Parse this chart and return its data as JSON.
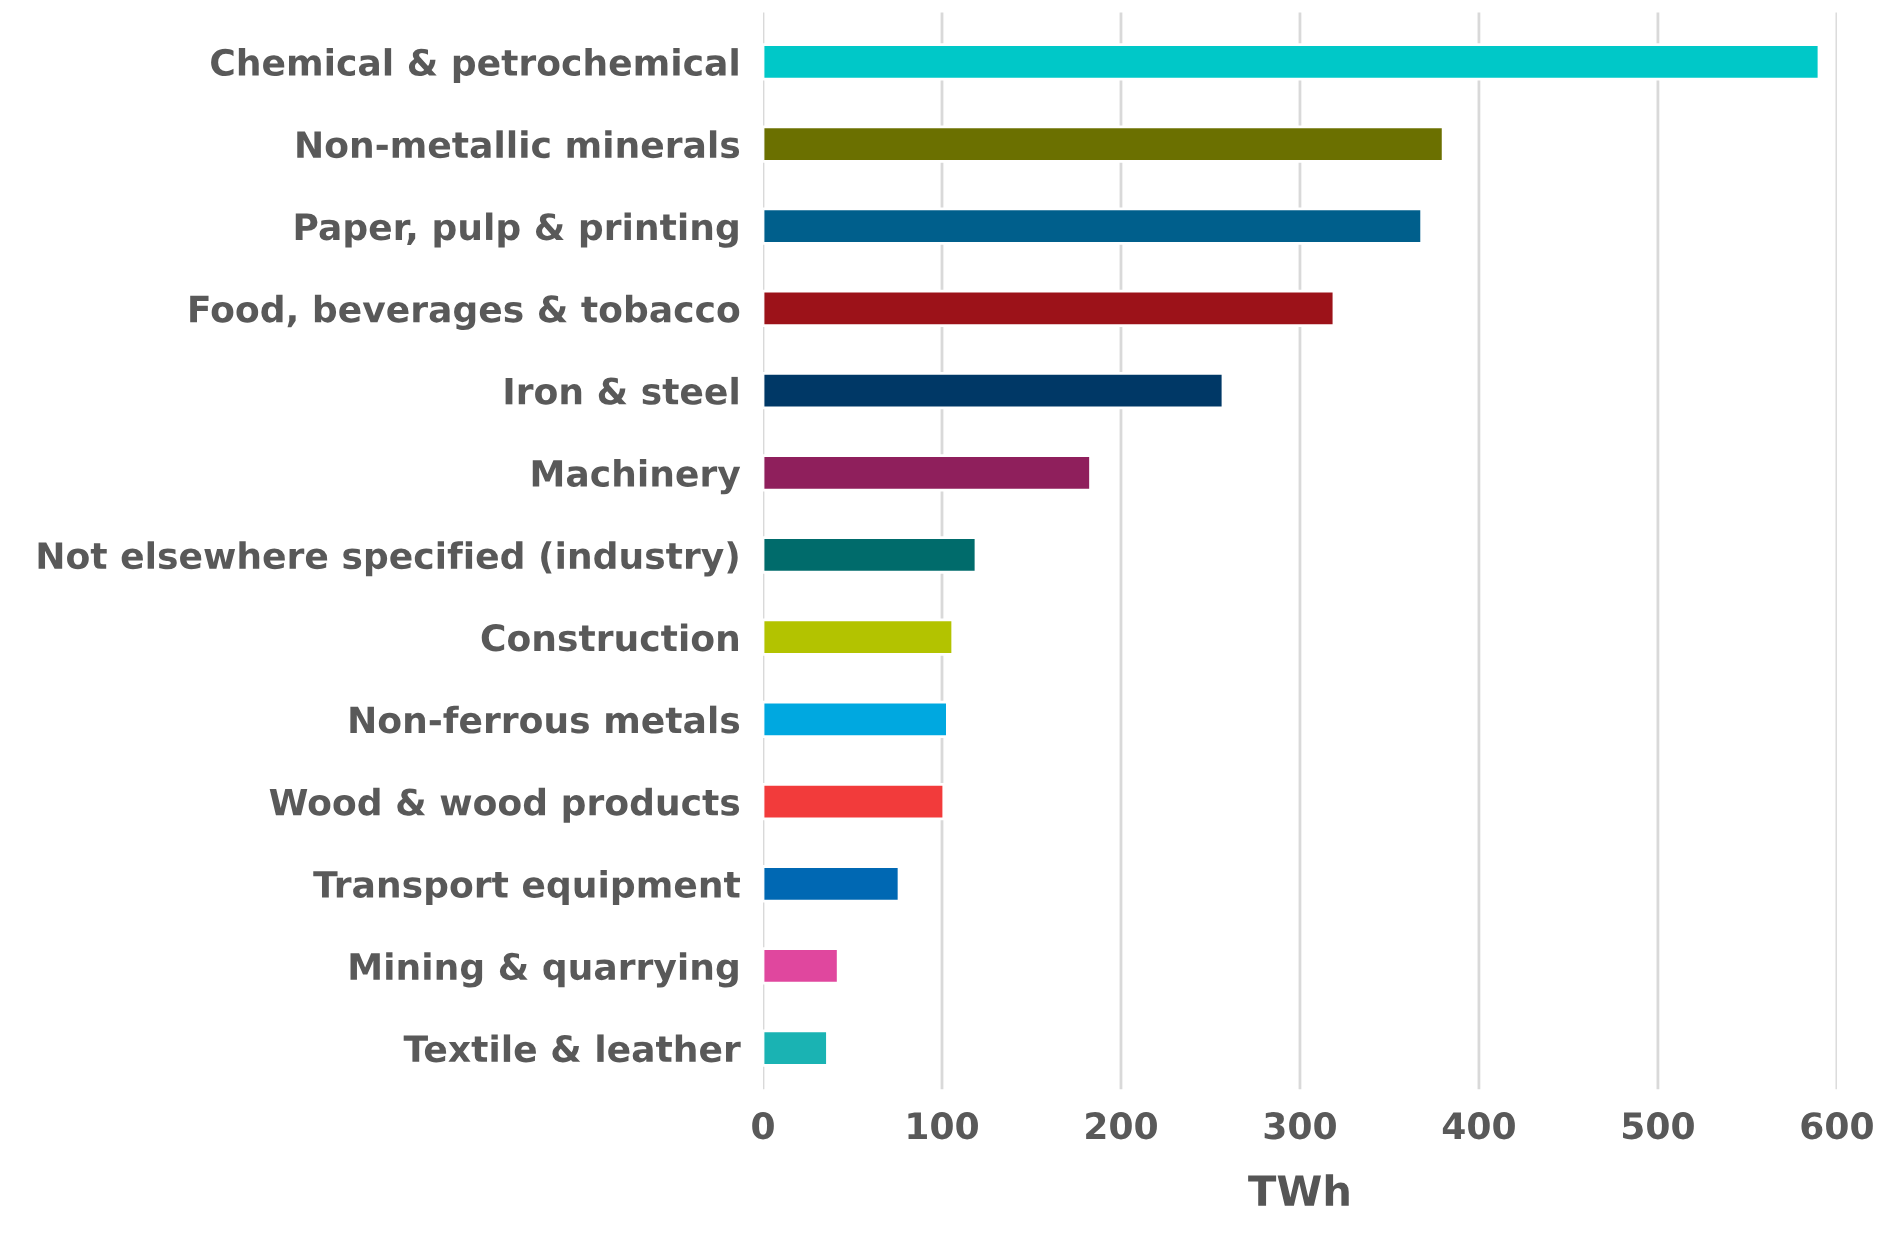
{
  "chart_data": {
    "type": "bar",
    "orientation": "horizontal",
    "xlabel": "TWh",
    "categories": [
      "Chemical & petrochemical",
      "Non-metallic minerals",
      "Paper, pulp & printing",
      "Food, beverages & tobacco",
      "Iron & steel",
      "Machinery",
      "Not elsewhere specified (industry)",
      "Construction",
      "Non-ferrous metals",
      "Wood & wood products",
      "Transport equipment",
      "Mining & quarrying",
      "Textile & leather"
    ],
    "values": [
      590,
      380,
      368,
      319,
      257,
      183,
      119,
      106,
      103,
      101,
      76,
      42,
      36
    ],
    "colors": [
      "#00c8c8",
      "#6b7000",
      "#005f8c",
      "#9c1219",
      "#003866",
      "#8f1f5c",
      "#006b6b",
      "#b3c300",
      "#00a8e0",
      "#f23b3b",
      "#0068b3",
      "#e0479e",
      "#1ab3b3"
    ],
    "xlim": [
      0,
      600
    ],
    "xticks": [
      0,
      100,
      200,
      300,
      400,
      500,
      600
    ],
    "grid": "x"
  }
}
